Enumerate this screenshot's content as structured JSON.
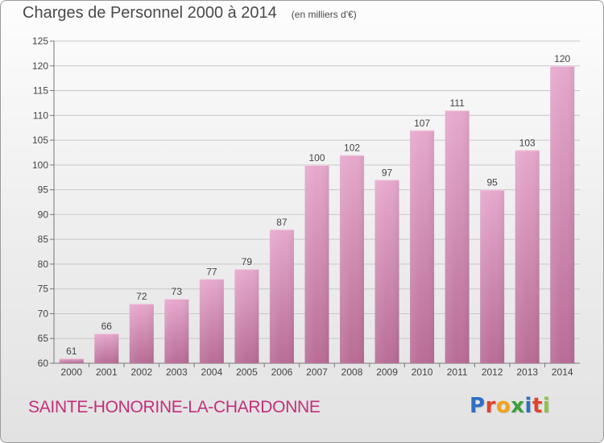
{
  "chart_data": {
    "type": "bar",
    "title": "Charges de Personnel 2000 à 2014",
    "subtitle": "(en milliers d'€)",
    "categories": [
      "2000",
      "2001",
      "2002",
      "2003",
      "2004",
      "2005",
      "2006",
      "2007",
      "2008",
      "2009",
      "2010",
      "2011",
      "2012",
      "2013",
      "2014"
    ],
    "values": [
      61,
      66,
      72,
      73,
      77,
      79,
      87,
      100,
      102,
      97,
      107,
      111,
      95,
      103,
      120
    ],
    "ylim": [
      60,
      125
    ],
    "yticks": [
      60,
      65,
      70,
      75,
      80,
      85,
      90,
      95,
      100,
      105,
      110,
      115,
      120,
      125
    ],
    "xlabel": "",
    "ylabel": "",
    "grid": true,
    "bar_color_top": "#e6a9cd",
    "bar_color_bottom": "#b86c96"
  },
  "footer": {
    "place_name": "SAINTE-HONORINE-LA-CHARDONNE",
    "logo_text": "Proxiti"
  },
  "colors": {
    "place_name": "#c2307a",
    "logo_letters": [
      "#2e6fc4",
      "#e0422b",
      "#f2a21b",
      "#3c9f3c",
      "#2e6fc4",
      "#e0422b",
      "#8bc34a"
    ]
  }
}
